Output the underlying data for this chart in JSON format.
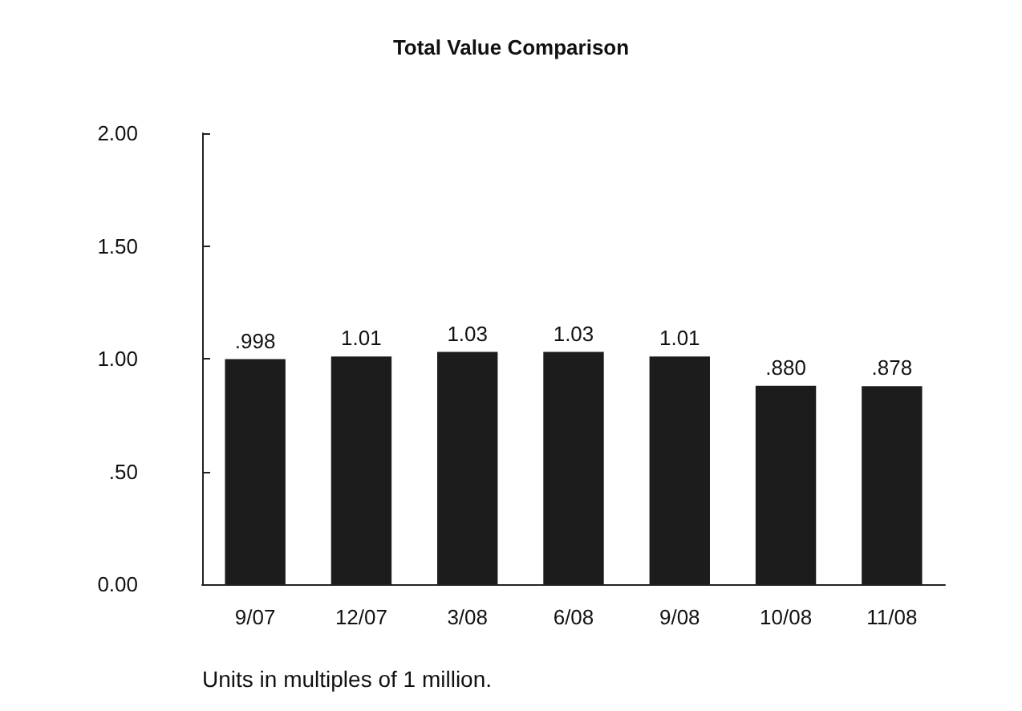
{
  "chart_data": {
    "type": "bar",
    "title": "Total Value Comparison",
    "categories": [
      "9/07",
      "12/07",
      "3/08",
      "6/08",
      "9/08",
      "10/08",
      "11/08"
    ],
    "values": [
      0.998,
      1.01,
      1.03,
      1.03,
      1.01,
      0.88,
      0.878
    ],
    "value_labels": [
      ".998",
      "1.01",
      "1.03",
      "1.03",
      "1.01",
      ".880",
      ".878"
    ],
    "color": "#1c1c1c",
    "ylim": [
      0,
      2
    ],
    "yticks": [
      {
        "value": 0,
        "label": "0.00"
      },
      {
        "value": 0.5,
        "label": ".50"
      },
      {
        "value": 1,
        "label": "1.00"
      },
      {
        "value": 1.5,
        "label": "1.50"
      },
      {
        "value": 2,
        "label": "2.00"
      }
    ],
    "grid": false,
    "annotations": [
      "Units in multiples of 1 million."
    ]
  }
}
